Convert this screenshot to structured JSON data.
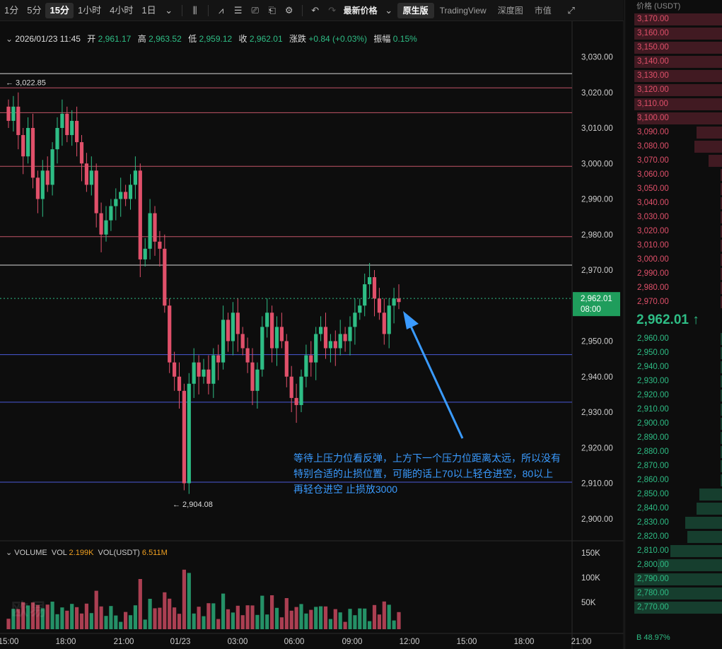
{
  "toolbar": {
    "timeframes": [
      "1分",
      "5分",
      "15分",
      "1小时",
      "4小时",
      "1日"
    ],
    "active_timeframe": "15分",
    "price_mode": "最新价格",
    "views": [
      "原生版",
      "TradingView",
      "深度图",
      "市值"
    ],
    "active_view": "原生版"
  },
  "info": {
    "datetime": "2026/01/23 11:45",
    "open_label": "开",
    "open": "2,961.17",
    "high_label": "高",
    "high": "2,963.52",
    "low_label": "低",
    "low": "2,959.12",
    "close_label": "收",
    "close": "2,962.01",
    "change_label": "涨跌",
    "change": "+0.84 (+0.03%)",
    "amp_label": "振幅",
    "amp": "0.15%"
  },
  "price_axis": [
    "3,030.00",
    "3,020.00",
    "3,010.00",
    "3,000.00",
    "2,990.00",
    "2,980.00",
    "2,970.00",
    "2,950.00",
    "2,940.00",
    "2,930.00",
    "2,920.00",
    "2,910.00",
    "2,900.00"
  ],
  "current_price_tag": {
    "price": "2,962.01",
    "countdown": "08:00"
  },
  "high_marker": "3,022.85",
  "low_marker": "2,904.08",
  "time_axis": [
    "15:00",
    "18:00",
    "21:00",
    "01/23",
    "03:00",
    "06:00",
    "09:00",
    "12:00",
    "15:00",
    "18:00",
    "21:00"
  ],
  "volume": {
    "label": "VOLUME",
    "vol_label": "VOL",
    "vol": "2.199K",
    "vol_usdt_label": "VOL(USDT)",
    "vol_usdt": "6.511M",
    "axis": [
      "150K",
      "100K",
      "50K"
    ]
  },
  "annotation": "等待上压力位看反弹，上方下一个压力位距离太远，所以没有特别合适的止损位置，可能的话上70以上轻仓进空，80以上再轻仓进空 止损放3000",
  "watermark": "欧易",
  "orderbook": {
    "header": "价格 (USDT)",
    "asks": [
      "3,170.00",
      "3,160.00",
      "3,150.00",
      "3,140.00",
      "3,130.00",
      "3,120.00",
      "3,110.00",
      "3,100.00",
      "3,090.00",
      "3,080.00",
      "3,070.00",
      "3,060.00",
      "3,050.00",
      "3,040.00",
      "3,030.00",
      "3,020.00",
      "3,010.00",
      "3,000.00",
      "2,990.00",
      "2,980.00",
      "2,970.00"
    ],
    "ask_depth": [
      0.95,
      0.95,
      0.95,
      0.95,
      0.95,
      0.95,
      0.95,
      0.92,
      0.28,
      0.3,
      0.15,
      0.02,
      0.02,
      0.02,
      0.02,
      0.02,
      0.02,
      0.02,
      0.02,
      0.02,
      0.02
    ],
    "last_price": "2,962.01 ↑",
    "bids": [
      "2,960.00",
      "2,950.00",
      "2,940.00",
      "2,930.00",
      "2,920.00",
      "2,910.00",
      "2,900.00",
      "2,890.00",
      "2,880.00",
      "2,870.00",
      "2,860.00",
      "2,850.00",
      "2,840.00",
      "2,830.00",
      "2,820.00",
      "2,810.00",
      "2,800.00",
      "2,790.00",
      "2,780.00",
      "2,770.00"
    ],
    "bid_depth": [
      0.02,
      0.02,
      0.02,
      0.02,
      0.02,
      0.02,
      0.02,
      0.02,
      0.02,
      0.02,
      0.02,
      0.25,
      0.28,
      0.4,
      0.38,
      0.56,
      0.7,
      0.95,
      0.95,
      0.95
    ],
    "footer": "B 48.97%"
  },
  "colors": {
    "up": "#2ebd85",
    "down": "#e0506a",
    "bg": "#0d0d0d"
  }
}
